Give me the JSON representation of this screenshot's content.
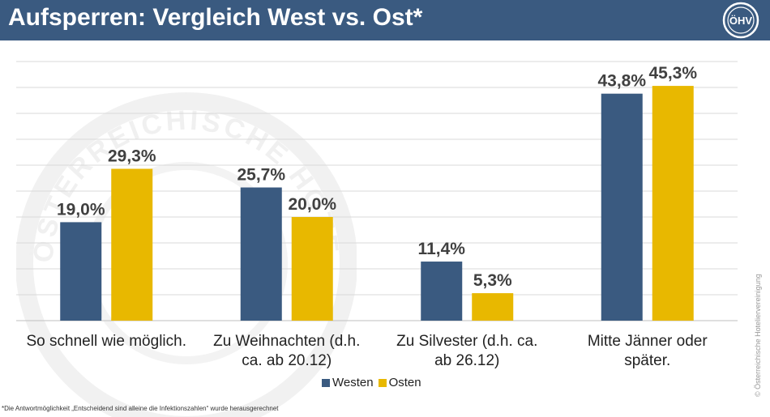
{
  "header": {
    "title": "Aufsperren: Vergleich West vs. Ost*",
    "logo_text": "ÖHV",
    "background_color": "#3a5a80"
  },
  "chart_data": {
    "type": "bar",
    "categories": [
      [
        "So schnell wie möglich."
      ],
      [
        "Zu Weihnachten (d.h.",
        "ca. ab 20.12)"
      ],
      [
        "Zu Silvester (d.h. ca.",
        "ab 26.12)"
      ],
      [
        "Mitte Jänner oder",
        "später."
      ]
    ],
    "series": [
      {
        "name": "Westen",
        "color": "#3a5a80",
        "values": [
          19.0,
          25.7,
          11.4,
          43.8
        ],
        "labels": [
          "19,0%",
          "25,7%",
          "11,4%",
          "43,8%"
        ]
      },
      {
        "name": "Osten",
        "color": "#e8b800",
        "values": [
          29.3,
          20.0,
          5.3,
          45.3
        ],
        "labels": [
          "29,3%",
          "20,0%",
          "5,3%",
          "45,3%"
        ]
      }
    ],
    "ylim": [
      0,
      50
    ],
    "grid": true,
    "legend_position": "bottom"
  },
  "footnote": "*Die Antwortmöglichkeit „Entscheidend sind alleine die Infektionszahlen“ wurde herausgerechnet",
  "copyright": "© Österreichische Hoteliervereinigung",
  "watermark_text": "ÖSTERREICHISCHE HOTELIER"
}
